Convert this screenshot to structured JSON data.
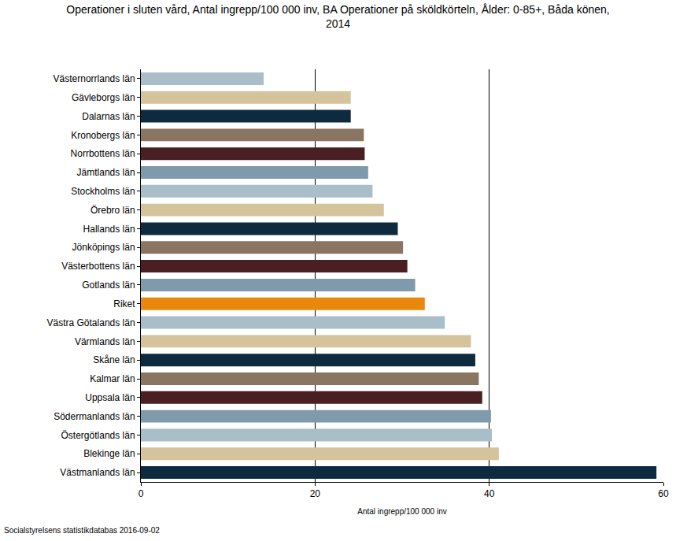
{
  "chart_data": {
    "type": "bar",
    "orientation": "horizontal",
    "title": "Operationer i sluten vård, Antal ingrepp/100 000 inv, BA Operationer på sköldkörteln, Ålder: 0-85+, Båda könen, 2014",
    "x_label": "Antal ingrepp/100 000 inv",
    "source": "Socialstyrelsens statistikdatabas 2016-09-02",
    "categories": [
      "Västernorrlands län",
      "Gävleborgs län",
      "Dalarnas län",
      "Kronobergs län",
      "Norrbottens län",
      "Jämtlands län",
      "Stockholms län",
      "Örebro län",
      "Hallands län",
      "Jönköpings län",
      "Västerbottens län",
      "Gotlands län",
      "Riket",
      "Västra Götalands län",
      "Värmlands län",
      "Skåne län",
      "Kalmar län",
      "Uppsala län",
      "Södermanlands län",
      "Östergötlands län",
      "Blekinge län",
      "Västmanlands län"
    ],
    "values": [
      14.1,
      24.1,
      24.1,
      25.6,
      25.7,
      26.1,
      26.6,
      27.9,
      29.5,
      30.1,
      30.6,
      31.5,
      32.6,
      34.9,
      37.9,
      38.4,
      38.8,
      39.2,
      40.2,
      40.3,
      41.1,
      59.2
    ],
    "colors": [
      "#a9bec9",
      "#d4c39b",
      "#0d2a3e",
      "#8a7563",
      "#4a1f24",
      "#7f9aab",
      "#a9bec9",
      "#d4c39b",
      "#0d2a3e",
      "#8a7563",
      "#4a1f24",
      "#7f9aab",
      "#e8890c",
      "#a9bec9",
      "#d4c39b",
      "#0d2a3e",
      "#8a7563",
      "#4a1f24",
      "#7f9aab",
      "#a9bec9",
      "#d4c39b",
      "#0d2a3e"
    ],
    "xlim": [
      0,
      60
    ],
    "xticks": [
      0,
      20,
      40,
      60
    ],
    "grid": true
  }
}
